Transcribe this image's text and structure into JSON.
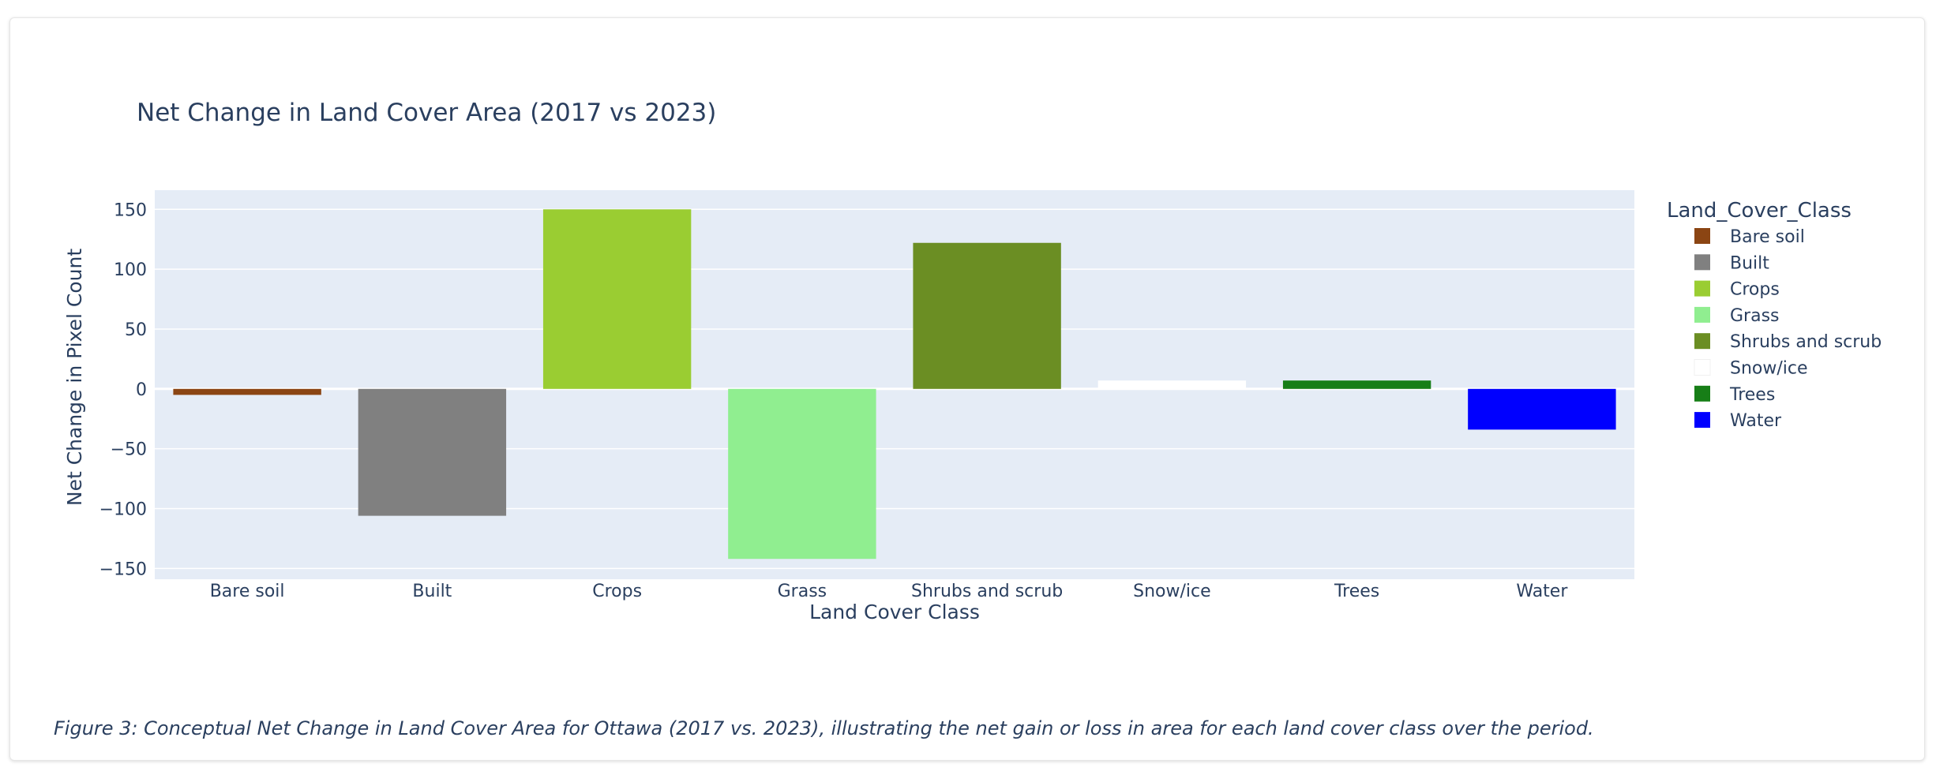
{
  "chart_data": {
    "type": "bar",
    "title": "Net Change in Land Cover Area (2017 vs 2023)",
    "xlabel": "Land Cover Class",
    "ylabel": "Net Change in Pixel Count",
    "categories": [
      "Bare soil",
      "Built",
      "Crops",
      "Grass",
      "Shrubs and scrub",
      "Snow/ice",
      "Trees",
      "Water"
    ],
    "values": [
      -5,
      -106,
      150,
      -142,
      122,
      7,
      7,
      -34
    ],
    "colors": [
      "#8B4513",
      "#808080",
      "#9ACD32",
      "#90EE90",
      "#6B8E23",
      "#FFFFFF",
      "#177E17",
      "#0000FF"
    ],
    "ylim": [
      -159,
      166
    ],
    "yticks": [
      150,
      100,
      50,
      0,
      -50,
      -100,
      -150
    ],
    "ytick_labels": [
      "150",
      "100",
      "50",
      "0",
      "−50",
      "−100",
      "−150"
    ],
    "grid": true,
    "legend": {
      "title": "Land_Cover_Class",
      "placement": "right",
      "entries": [
        "Bare soil",
        "Built",
        "Crops",
        "Grass",
        "Shrubs and scrub",
        "Snow/ice",
        "Trees",
        "Water"
      ]
    }
  },
  "caption": "Figure 3: Conceptual Net Change in Land Cover Area for Ottawa (2017 vs. 2023), illustrating the net gain or loss in area for each land cover class over the period.",
  "colors": {
    "plot_bg": "#E5ECF6",
    "text": "#2a3f5f",
    "grid": "#ffffff"
  }
}
